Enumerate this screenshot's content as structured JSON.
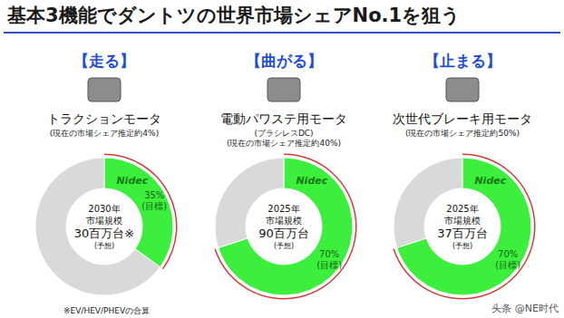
{
  "title": "基本3機能でダントツの世界市場シェアNo.1を狙う",
  "watermark": "头条 @NE时代",
  "chart_data": [
    {
      "type": "pie",
      "heading": "【走る】",
      "title": "トラクションモータ",
      "subtitle": [
        "(現在の市場シェア推定約4%)"
      ],
      "categories": [
        "Nidec",
        null
      ],
      "values": [
        35,
        65
      ],
      "colors": [
        "#3cef3c",
        "#d9d9d9"
      ],
      "data_labels": true,
      "value_labels": [
        "35%",
        null
      ],
      "label_note": "(目標)",
      "center_text": [
        "2030年",
        "市場規模",
        "30百万台※",
        "(予想)"
      ],
      "note": "※EV/HEV/PHEVの合算"
    },
    {
      "type": "pie",
      "heading": "【曲がる】",
      "title": "電動パワステ用モータ",
      "subtitle": [
        "(ブラシレスDC)",
        "(現在の市場シェア推定約40%)"
      ],
      "categories": [
        "Nidec",
        null
      ],
      "values": [
        70,
        30
      ],
      "colors": [
        "#3cef3c",
        "#d9d9d9"
      ],
      "data_labels": true,
      "value_labels": [
        "70%",
        null
      ],
      "label_note": "(目標)",
      "center_text": [
        "2025年",
        "市場規模",
        "90百万台",
        "(予想)"
      ]
    },
    {
      "type": "pie",
      "heading": "【止まる】",
      "title": "次世代ブレーキ用モータ",
      "subtitle": [
        "(現在の市場シェア推定約50%)"
      ],
      "categories": [
        "Nidec",
        null
      ],
      "values": [
        70,
        30
      ],
      "colors": [
        "#3cef3c",
        "#d9d9d9"
      ],
      "data_labels": true,
      "value_labels": [
        "70%",
        null
      ],
      "label_note": "(目標)",
      "center_text": [
        "2025年",
        "市場規模",
        "37百万台",
        "(予想)"
      ]
    }
  ]
}
